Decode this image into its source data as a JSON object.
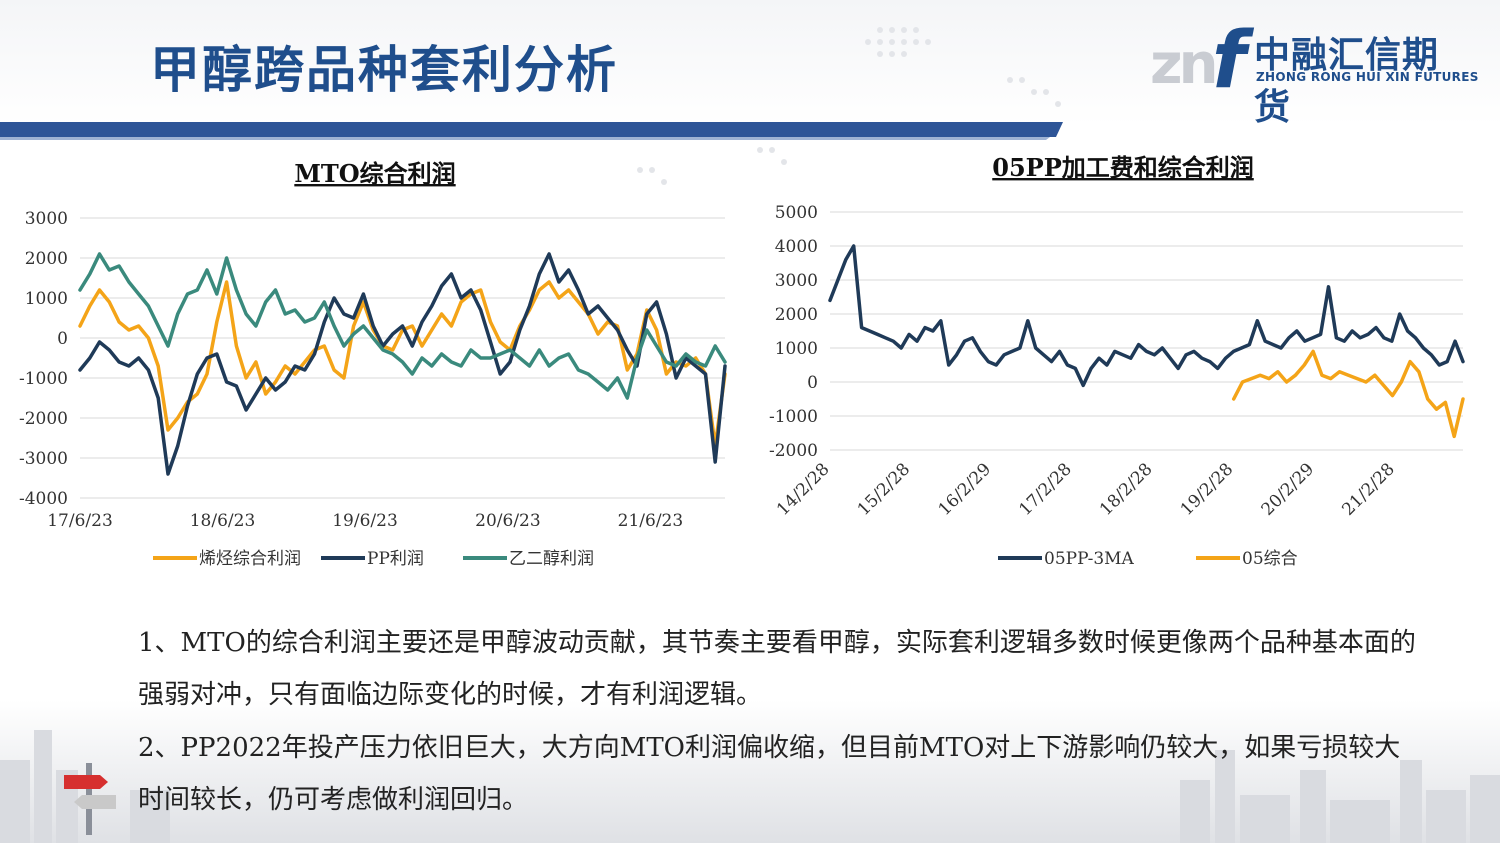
{
  "page": {
    "title": "甲醇跨品种套利分析",
    "logo": {
      "zn": "zn",
      "f": "f",
      "cn": "中融汇信期货",
      "en": "ZHONG RONG HUI XIN FUTURES"
    },
    "paragraphs": [
      "1、MTO的综合利润主要还是甲醇波动贡献，其节奏主要看甲醇，实际套利逻辑多数时候更像两个品种基本面的强弱对冲，只有面临边际变化的时候，才有利润逻辑。",
      "2、PP2022年投产压力依旧巨大，大方向MTO利润偏收缩，但目前MTO对上下游影响仍较大，如果亏损较大时间较长，仍可考虑做利润回归。"
    ],
    "colors": {
      "title": "#1f4e8c",
      "banner": "#2e5597",
      "navy": "#1f3a58",
      "orange": "#f4a418",
      "teal": "#3a8a7d"
    }
  },
  "chart_data": [
    {
      "type": "line",
      "title": "MTO综合利润",
      "x_tick_labels": [
        "17/6/23",
        "18/6/23",
        "19/6/23",
        "20/6/23",
        "21/6/23"
      ],
      "x_range": [
        "2017-06-23",
        "2021-12-31"
      ],
      "ylim": [
        -4000,
        3000
      ],
      "y_ticks": [
        3000,
        2000,
        1000,
        0,
        -1000,
        -2000,
        -3000,
        -4000
      ],
      "grid": true,
      "legend_position": "bottom",
      "sampling": "monthly approximation",
      "series": [
        {
          "name": "烯烃综合利润",
          "color": "#f4a418",
          "values": [
            300,
            800,
            1200,
            900,
            400,
            200,
            300,
            0,
            -700,
            -2300,
            -2000,
            -1600,
            -1400,
            -900,
            400,
            1400,
            -200,
            -1000,
            -600,
            -1400,
            -1100,
            -700,
            -900,
            -600,
            -300,
            -200,
            -800,
            -1000,
            300,
            900,
            200,
            -200,
            -300,
            200,
            300,
            -200,
            200,
            600,
            300,
            900,
            1100,
            1200,
            400,
            -100,
            -300,
            300,
            700,
            1200,
            1400,
            1000,
            1200,
            900,
            600,
            100,
            400,
            300,
            -800,
            -400,
            700,
            200,
            -900,
            -600,
            -700,
            -500,
            -900,
            -2700,
            -900
          ]
        },
        {
          "name": "PP利润",
          "color": "#1f3a58",
          "values": [
            -800,
            -500,
            -100,
            -300,
            -600,
            -700,
            -500,
            -800,
            -1500,
            -3400,
            -2700,
            -1700,
            -900,
            -500,
            -400,
            -1100,
            -1200,
            -1800,
            -1400,
            -1000,
            -1300,
            -1100,
            -700,
            -800,
            -400,
            400,
            1000,
            600,
            500,
            1100,
            300,
            -200,
            100,
            300,
            -200,
            400,
            800,
            1300,
            1600,
            1000,
            1200,
            700,
            -100,
            -900,
            -600,
            200,
            800,
            1600,
            2100,
            1400,
            1700,
            1200,
            600,
            800,
            500,
            200,
            -300,
            -700,
            600,
            900,
            100,
            -1000,
            -500,
            -700,
            -900,
            -3100,
            -700
          ]
        },
        {
          "name": "乙二醇利润",
          "color": "#3a8a7d",
          "values": [
            1200,
            1600,
            2100,
            1700,
            1800,
            1400,
            1100,
            800,
            300,
            -200,
            600,
            1100,
            1200,
            1700,
            1100,
            2000,
            1200,
            600,
            300,
            900,
            1200,
            600,
            700,
            400,
            500,
            900,
            300,
            -200,
            100,
            300,
            0,
            -300,
            -400,
            -600,
            -900,
            -500,
            -700,
            -400,
            -600,
            -700,
            -300,
            -500,
            -500,
            -400,
            -300,
            -500,
            -700,
            -300,
            -700,
            -500,
            -400,
            -800,
            -900,
            -1100,
            -1300,
            -1000,
            -1500,
            -500,
            200,
            -200,
            -600,
            -700,
            -400,
            -600,
            -700,
            -200,
            -600
          ]
        }
      ]
    },
    {
      "type": "line",
      "title": "05PP加工费和综合利润",
      "x_tick_labels": [
        "14/2/28",
        "15/2/28",
        "16/2/29",
        "17/2/28",
        "18/2/28",
        "19/2/28",
        "20/2/29",
        "21/2/28"
      ],
      "x_range": [
        "2014-02-28",
        "2021-12-31"
      ],
      "ylim": [
        -2000,
        5000
      ],
      "y_ticks": [
        5000,
        4000,
        3000,
        2000,
        1000,
        0,
        -1000,
        -2000
      ],
      "grid": true,
      "legend_position": "bottom",
      "sampling": "monthly approximation",
      "series": [
        {
          "name": "05PP-3MA",
          "color": "#1f3a58",
          "start": "2014-02-28",
          "values": [
            2400,
            3000,
            3600,
            4000,
            1600,
            1500,
            1400,
            1300,
            1200,
            1000,
            1400,
            1200,
            1600,
            1500,
            1800,
            500,
            800,
            1200,
            1300,
            900,
            600,
            500,
            800,
            900,
            1000,
            1800,
            1000,
            800,
            600,
            900,
            500,
            400,
            -100,
            400,
            700,
            500,
            900,
            800,
            700,
            1100,
            900,
            800,
            1000,
            700,
            400,
            800,
            900,
            700,
            600,
            400,
            700,
            900,
            1000,
            1100,
            1800,
            1200,
            1100,
            1000,
            1300,
            1500,
            1200,
            1300,
            1400,
            2800,
            1300,
            1200,
            1500,
            1300,
            1400,
            1600,
            1300,
            1200,
            2000,
            1500,
            1300,
            1000,
            800,
            500,
            600,
            1200,
            600
          ]
        },
        {
          "name": "05综合",
          "color": "#f4a418",
          "start": "2019-02-28",
          "values": [
            -500,
            0,
            100,
            200,
            100,
            300,
            0,
            200,
            500,
            900,
            200,
            100,
            300,
            200,
            100,
            0,
            200,
            -100,
            -400,
            0,
            600,
            300,
            -500,
            -800,
            -600,
            -1600,
            -500
          ]
        }
      ]
    }
  ]
}
